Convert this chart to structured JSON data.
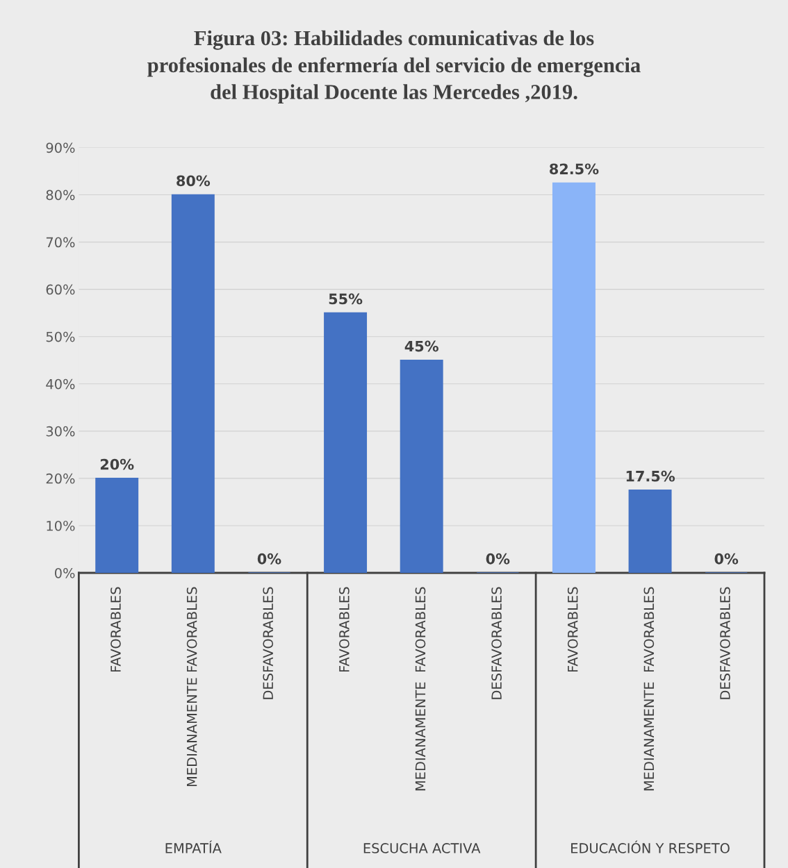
{
  "chart_data": {
    "type": "bar",
    "title": "Figura 03: Habilidades comunicativas de los\nprofesionales de enfermería del servicio de emergencia\ndel Hospital Docente las Mercedes ,2019.",
    "categories": [
      "FAVORABLES",
      "MEDIANAMENTE FAVORABLES",
      "DESFAVORABLES",
      "FAVORABLES",
      "MEDIANAMENTE  FAVORABLES",
      "DESFAVORABLES",
      "FAVORABLES",
      "MEDIANAMENTE  FAVORABLES",
      "DESFAVORABLES"
    ],
    "values": [
      20,
      80,
      0,
      55,
      45,
      0,
      82.5,
      17.5,
      0
    ],
    "colors": [
      "#4472c4",
      "#4472c4",
      "#4472c4",
      "#4472c4",
      "#4472c4",
      "#4472c4",
      "#8ab4f8",
      "#4472c4",
      "#4472c4"
    ],
    "value_labels": [
      "20%",
      "80%",
      "0%",
      "55%",
      "45%",
      "0%",
      "82.5%",
      "17.5%",
      "0%"
    ],
    "annotations": [
      "EMPATÍA",
      "ESCUCHA ACTIVA",
      "EDUCACIÓN Y RESPETO"
    ],
    "ylim": [
      0,
      90
    ],
    "yticks": [
      {
        "value": 0,
        "label": "0%"
      },
      {
        "value": 10,
        "label": "10%"
      },
      {
        "value": 20,
        "label": "20%"
      },
      {
        "value": 30,
        "label": "30%"
      },
      {
        "value": 40,
        "label": "40%"
      },
      {
        "value": 50,
        "label": "50%"
      },
      {
        "value": 60,
        "label": "60%"
      },
      {
        "value": 70,
        "label": "70%"
      },
      {
        "value": 80,
        "label": "80%"
      },
      {
        "value": 90,
        "label": "90%"
      }
    ],
    "grid": "y"
  }
}
